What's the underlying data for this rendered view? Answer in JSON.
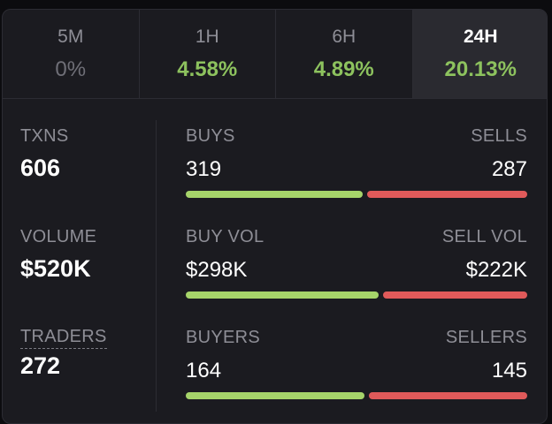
{
  "timeframes": [
    {
      "label": "5M",
      "change": "0%",
      "trend": "neutral"
    },
    {
      "label": "1H",
      "change": "4.58%",
      "trend": "up"
    },
    {
      "label": "6H",
      "change": "4.89%",
      "trend": "up"
    },
    {
      "label": "24H",
      "change": "20.13%",
      "trend": "up",
      "selected": true
    }
  ],
  "summary": {
    "txns": {
      "label": "TXNS",
      "value": "606"
    },
    "volume": {
      "label": "VOLUME",
      "value": "$520K"
    },
    "traders": {
      "label": "TRADERS",
      "value": "272"
    }
  },
  "breakdown": {
    "txns": {
      "buy_label": "BUYS",
      "sell_label": "SELLS",
      "buy_value": "319",
      "sell_value": "287",
      "buy_share": 0.526
    },
    "volume": {
      "buy_label": "BUY VOL",
      "sell_label": "SELL VOL",
      "buy_value": "$298K",
      "sell_value": "$222K",
      "buy_share": 0.573
    },
    "traders": {
      "buy_label": "BUYERS",
      "sell_label": "SELLERS",
      "buy_value": "164",
      "sell_value": "145",
      "buy_share": 0.531
    }
  },
  "colors": {
    "positive": "#8dc25e",
    "buy_bar": "#a6d46a",
    "sell_bar": "#e05a5a",
    "neutral": "#6f6f77"
  }
}
